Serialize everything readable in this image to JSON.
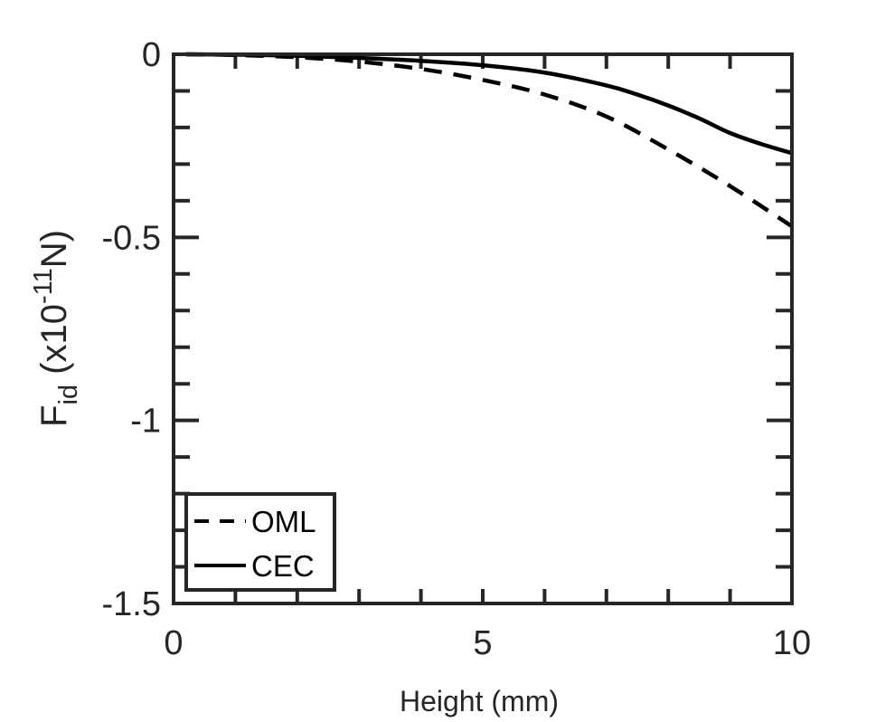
{
  "chart_data": {
    "type": "line",
    "xlabel": "Height (mm)",
    "ylabel": {
      "base": "F",
      "subscript": "id",
      "unit_prefix": " (x10",
      "exponent": "-11",
      "unit_suffix": "N)"
    },
    "xlim": [
      0,
      10
    ],
    "ylim": [
      -1.5,
      0
    ],
    "x_ticks": [
      0,
      5,
      10
    ],
    "x_tick_labels": [
      "0",
      "5",
      "10"
    ],
    "x_minor_step": 1,
    "y_ticks": [
      0,
      -0.5,
      -1,
      -1.5
    ],
    "y_tick_labels": [
      "0",
      "-0.5",
      "-1",
      "-1.5"
    ],
    "y_minor_step": 0.1,
    "grid": false,
    "legend_position": "bottom-left",
    "series": [
      {
        "name": "OML",
        "style": "dashed",
        "color": "#000000",
        "x": [
          0.2,
          1,
          2,
          3,
          4,
          5,
          6,
          7,
          8,
          9,
          10
        ],
        "y": [
          0,
          -0.002,
          -0.008,
          -0.02,
          -0.04,
          -0.07,
          -0.11,
          -0.17,
          -0.26,
          -0.36,
          -0.47
        ]
      },
      {
        "name": "CEC",
        "style": "solid",
        "color": "#000000",
        "x": [
          0.2,
          1,
          2,
          3,
          4,
          5,
          6,
          7,
          7.5,
          8,
          8.5,
          9,
          9.5,
          10
        ],
        "y": [
          0,
          -0.001,
          -0.004,
          -0.01,
          -0.018,
          -0.03,
          -0.05,
          -0.085,
          -0.11,
          -0.14,
          -0.175,
          -0.215,
          -0.245,
          -0.27
        ]
      }
    ]
  }
}
